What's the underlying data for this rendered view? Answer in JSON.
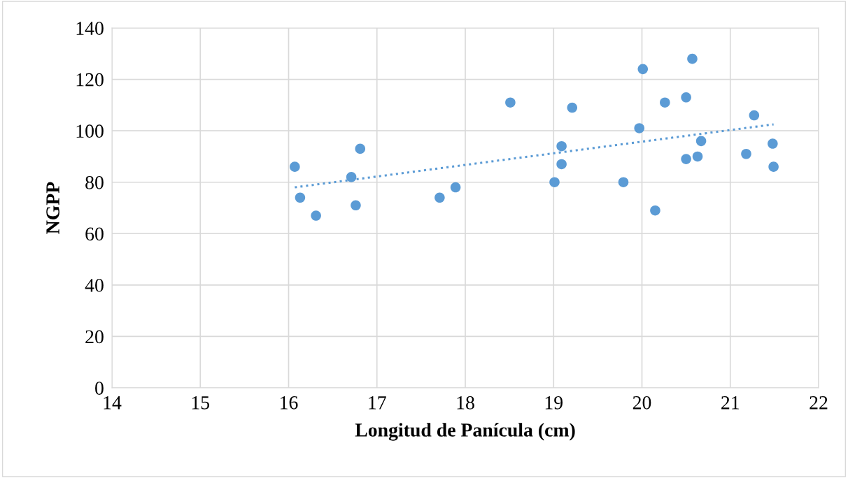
{
  "chart_data": {
    "type": "scatter",
    "xlabel": "Longitud de Panícula (cm)",
    "ylabel": "NGPP",
    "xlim": [
      14,
      22
    ],
    "xticks": [
      14,
      15,
      16,
      17,
      18,
      19,
      20,
      21,
      22
    ],
    "ylim": [
      0,
      140
    ],
    "yticks": [
      0,
      20,
      40,
      60,
      80,
      100,
      120,
      140
    ],
    "grid": true,
    "marker": "circle",
    "series": [
      {
        "color": "#5b9bd5",
        "x": [
          16.07,
          16.13,
          16.31,
          16.71,
          16.76,
          16.81,
          17.71,
          17.89,
          18.51,
          19.01,
          19.09,
          19.09,
          19.21,
          19.79,
          19.97,
          20.01,
          20.15,
          20.26,
          20.5,
          20.5,
          20.57,
          20.63,
          20.67,
          21.18,
          21.27,
          21.48,
          21.49
        ],
        "values": [
          86,
          74,
          67,
          82,
          71,
          93,
          74,
          78,
          111,
          80,
          94,
          87,
          109,
          80,
          101,
          124,
          69,
          111,
          113,
          89,
          128,
          90,
          96,
          91,
          106,
          95,
          86
        ]
      },
      {
        "type": "line",
        "color": "#5b9bd5",
        "line_style": "dotted",
        "marker": "none",
        "x": [
          16.07,
          21.49
        ],
        "values": [
          78,
          102.5
        ]
      }
    ]
  }
}
